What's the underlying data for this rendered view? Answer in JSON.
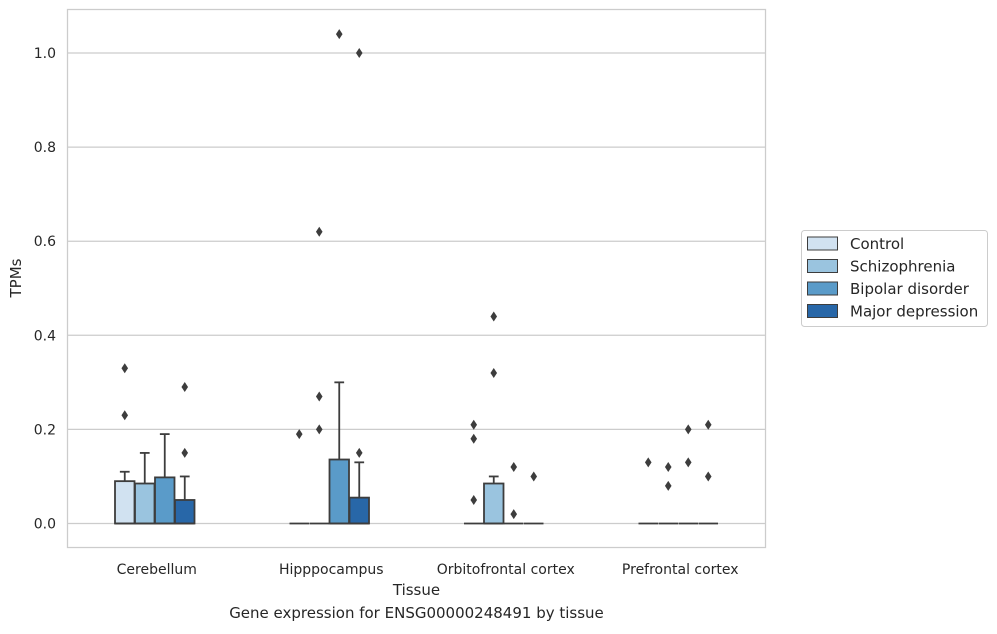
{
  "caption": "Gene expression for ENSG00000248491 by tissue",
  "chart_data": {
    "type": "box",
    "xlabel": "Tissue",
    "ylabel": "TPMs",
    "ylim": [
      -0.05,
      1.09
    ],
    "yticks": [
      0.0,
      0.2,
      0.4,
      0.6,
      0.8,
      1.0
    ],
    "ytick_labels": [
      "0.0",
      "0.2",
      "0.4",
      "0.6",
      "0.8",
      "1.0"
    ],
    "grid": "horizontal",
    "legend_position": "right",
    "categories": [
      "Cerebellum",
      "Hipppocampus",
      "Orbitofrontal cortex",
      "Prefrontal cortex"
    ],
    "series": [
      {
        "name": "Control",
        "color": "#d1e2f1",
        "boxes": [
          {
            "q1": 0.0,
            "median": 0.0,
            "q3": 0.09,
            "whisker_low": 0.0,
            "whisker_high": 0.11,
            "outliers": [
              0.33,
              0.23
            ]
          },
          {
            "q1": 0.0,
            "median": 0.0,
            "q3": 0.0,
            "whisker_low": 0.0,
            "whisker_high": 0.0,
            "outliers": [
              0.19
            ]
          },
          {
            "q1": 0.0,
            "median": 0.0,
            "q3": 0.0,
            "whisker_low": 0.0,
            "whisker_high": 0.0,
            "outliers": [
              0.21,
              0.18,
              0.05
            ]
          },
          {
            "q1": 0.0,
            "median": 0.0,
            "q3": 0.0,
            "whisker_low": 0.0,
            "whisker_high": 0.0,
            "outliers": [
              0.13
            ]
          }
        ]
      },
      {
        "name": "Schizophrenia",
        "color": "#9ac4df",
        "boxes": [
          {
            "q1": 0.0,
            "median": 0.0,
            "q3": 0.085,
            "whisker_low": 0.0,
            "whisker_high": 0.15,
            "outliers": []
          },
          {
            "q1": 0.0,
            "median": 0.0,
            "q3": 0.0,
            "whisker_low": 0.0,
            "whisker_high": 0.0,
            "outliers": [
              0.62,
              0.27,
              0.2
            ]
          },
          {
            "q1": 0.0,
            "median": 0.0,
            "q3": 0.085,
            "whisker_low": 0.0,
            "whisker_high": 0.1,
            "outliers": [
              0.44,
              0.32
            ]
          },
          {
            "q1": 0.0,
            "median": 0.0,
            "q3": 0.0,
            "whisker_low": 0.0,
            "whisker_high": 0.0,
            "outliers": [
              0.12,
              0.08
            ]
          }
        ]
      },
      {
        "name": "Bipolar disorder",
        "color": "#5a9bc9",
        "boxes": [
          {
            "q1": 0.0,
            "median": 0.0,
            "q3": 0.098,
            "whisker_low": 0.0,
            "whisker_high": 0.19,
            "outliers": []
          },
          {
            "q1": 0.0,
            "median": 0.0,
            "q3": 0.136,
            "whisker_low": 0.0,
            "whisker_high": 0.3,
            "outliers": [
              1.04
            ]
          },
          {
            "q1": 0.0,
            "median": 0.0,
            "q3": 0.0,
            "whisker_low": 0.0,
            "whisker_high": 0.0,
            "outliers": [
              0.12,
              0.02
            ]
          },
          {
            "q1": 0.0,
            "median": 0.0,
            "q3": 0.0,
            "whisker_low": 0.0,
            "whisker_high": 0.0,
            "outliers": [
              0.2,
              0.13
            ]
          }
        ]
      },
      {
        "name": "Major depression",
        "color": "#2867a8",
        "boxes": [
          {
            "q1": 0.0,
            "median": 0.0,
            "q3": 0.05,
            "whisker_low": 0.0,
            "whisker_high": 0.1,
            "outliers": [
              0.29,
              0.15
            ]
          },
          {
            "q1": 0.0,
            "median": 0.0,
            "q3": 0.055,
            "whisker_low": 0.0,
            "whisker_high": 0.13,
            "outliers": [
              1.0,
              0.15
            ]
          },
          {
            "q1": 0.0,
            "median": 0.0,
            "q3": 0.0,
            "whisker_low": 0.0,
            "whisker_high": 0.0,
            "outliers": [
              0.1
            ]
          },
          {
            "q1": 0.0,
            "median": 0.0,
            "q3": 0.0,
            "whisker_low": 0.0,
            "whisker_high": 0.0,
            "outliers": [
              0.21,
              0.1
            ]
          }
        ]
      }
    ]
  }
}
